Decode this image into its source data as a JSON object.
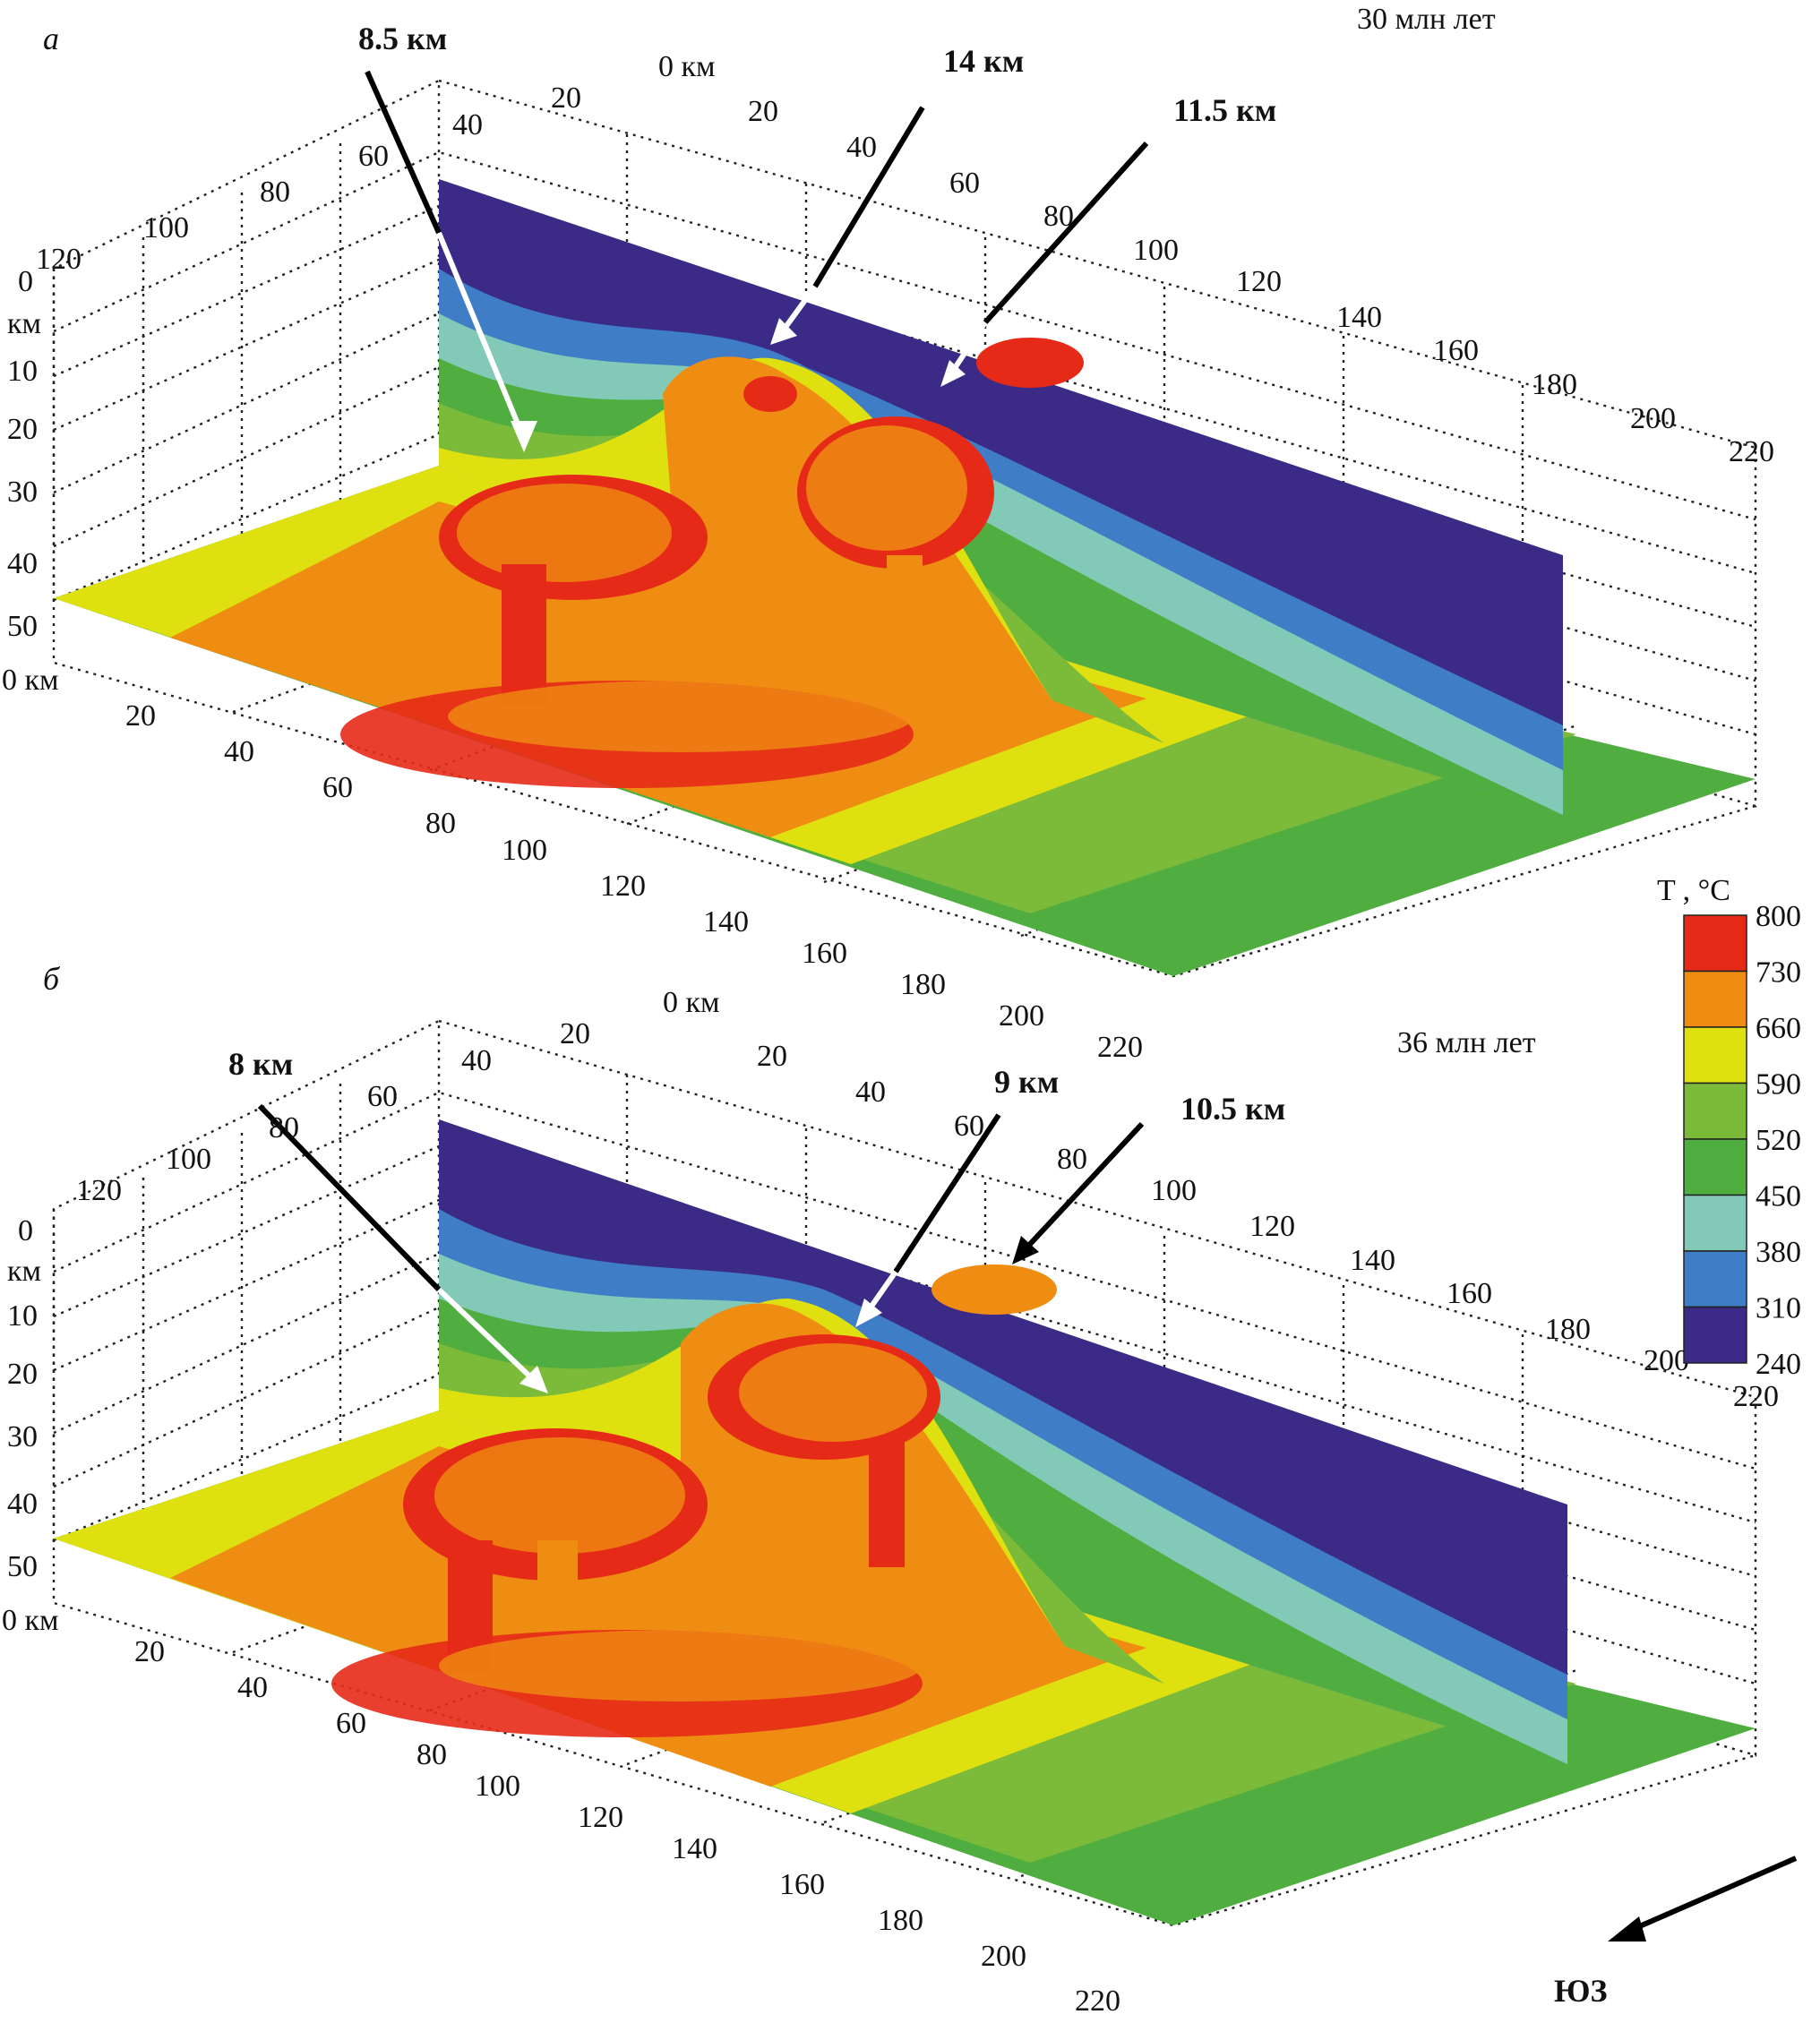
{
  "legend": {
    "title": "T , °C",
    "values": [
      "800",
      "730",
      "660",
      "590",
      "520",
      "450",
      "380",
      "310",
      "240"
    ],
    "colors": [
      "#e52a18",
      "#ef8c12",
      "#dfe010",
      "#7cba3a",
      "#4fae3f",
      "#82c9b8",
      "#3f7dc6",
      "#3b2b87"
    ]
  },
  "panels": [
    {
      "label": "а",
      "time": "30 млн лет",
      "arrows": [
        {
          "label": "8.5 км"
        },
        {
          "label": "14 км"
        },
        {
          "label": "11.5 км"
        }
      ]
    },
    {
      "label": "б",
      "time": "36 млн лет",
      "arrows": [
        {
          "label": "8 км"
        },
        {
          "label": "9 км"
        },
        {
          "label": "10.5 км"
        }
      ]
    }
  ],
  "axes": {
    "depth_ticks": [
      "0",
      "10",
      "20",
      "30",
      "40",
      "50"
    ],
    "depth_unit": "км",
    "y_ticks": [
      "0 км",
      "20",
      "40",
      "60",
      "80",
      "100",
      "120",
      "140",
      "160",
      "180",
      "200",
      "220"
    ],
    "x_ticks": [
      "0 км",
      "20",
      "40",
      "60",
      "80",
      "100",
      "120",
      "140",
      "160",
      "180",
      "200",
      "220"
    ],
    "top_ticks_a": [
      "20",
      "40",
      "60",
      "80",
      "100",
      "120"
    ],
    "top_ticks_b": [
      "20",
      "40",
      "60",
      "80",
      "100",
      "120"
    ]
  },
  "direction": {
    "label": "ЮЗ"
  }
}
